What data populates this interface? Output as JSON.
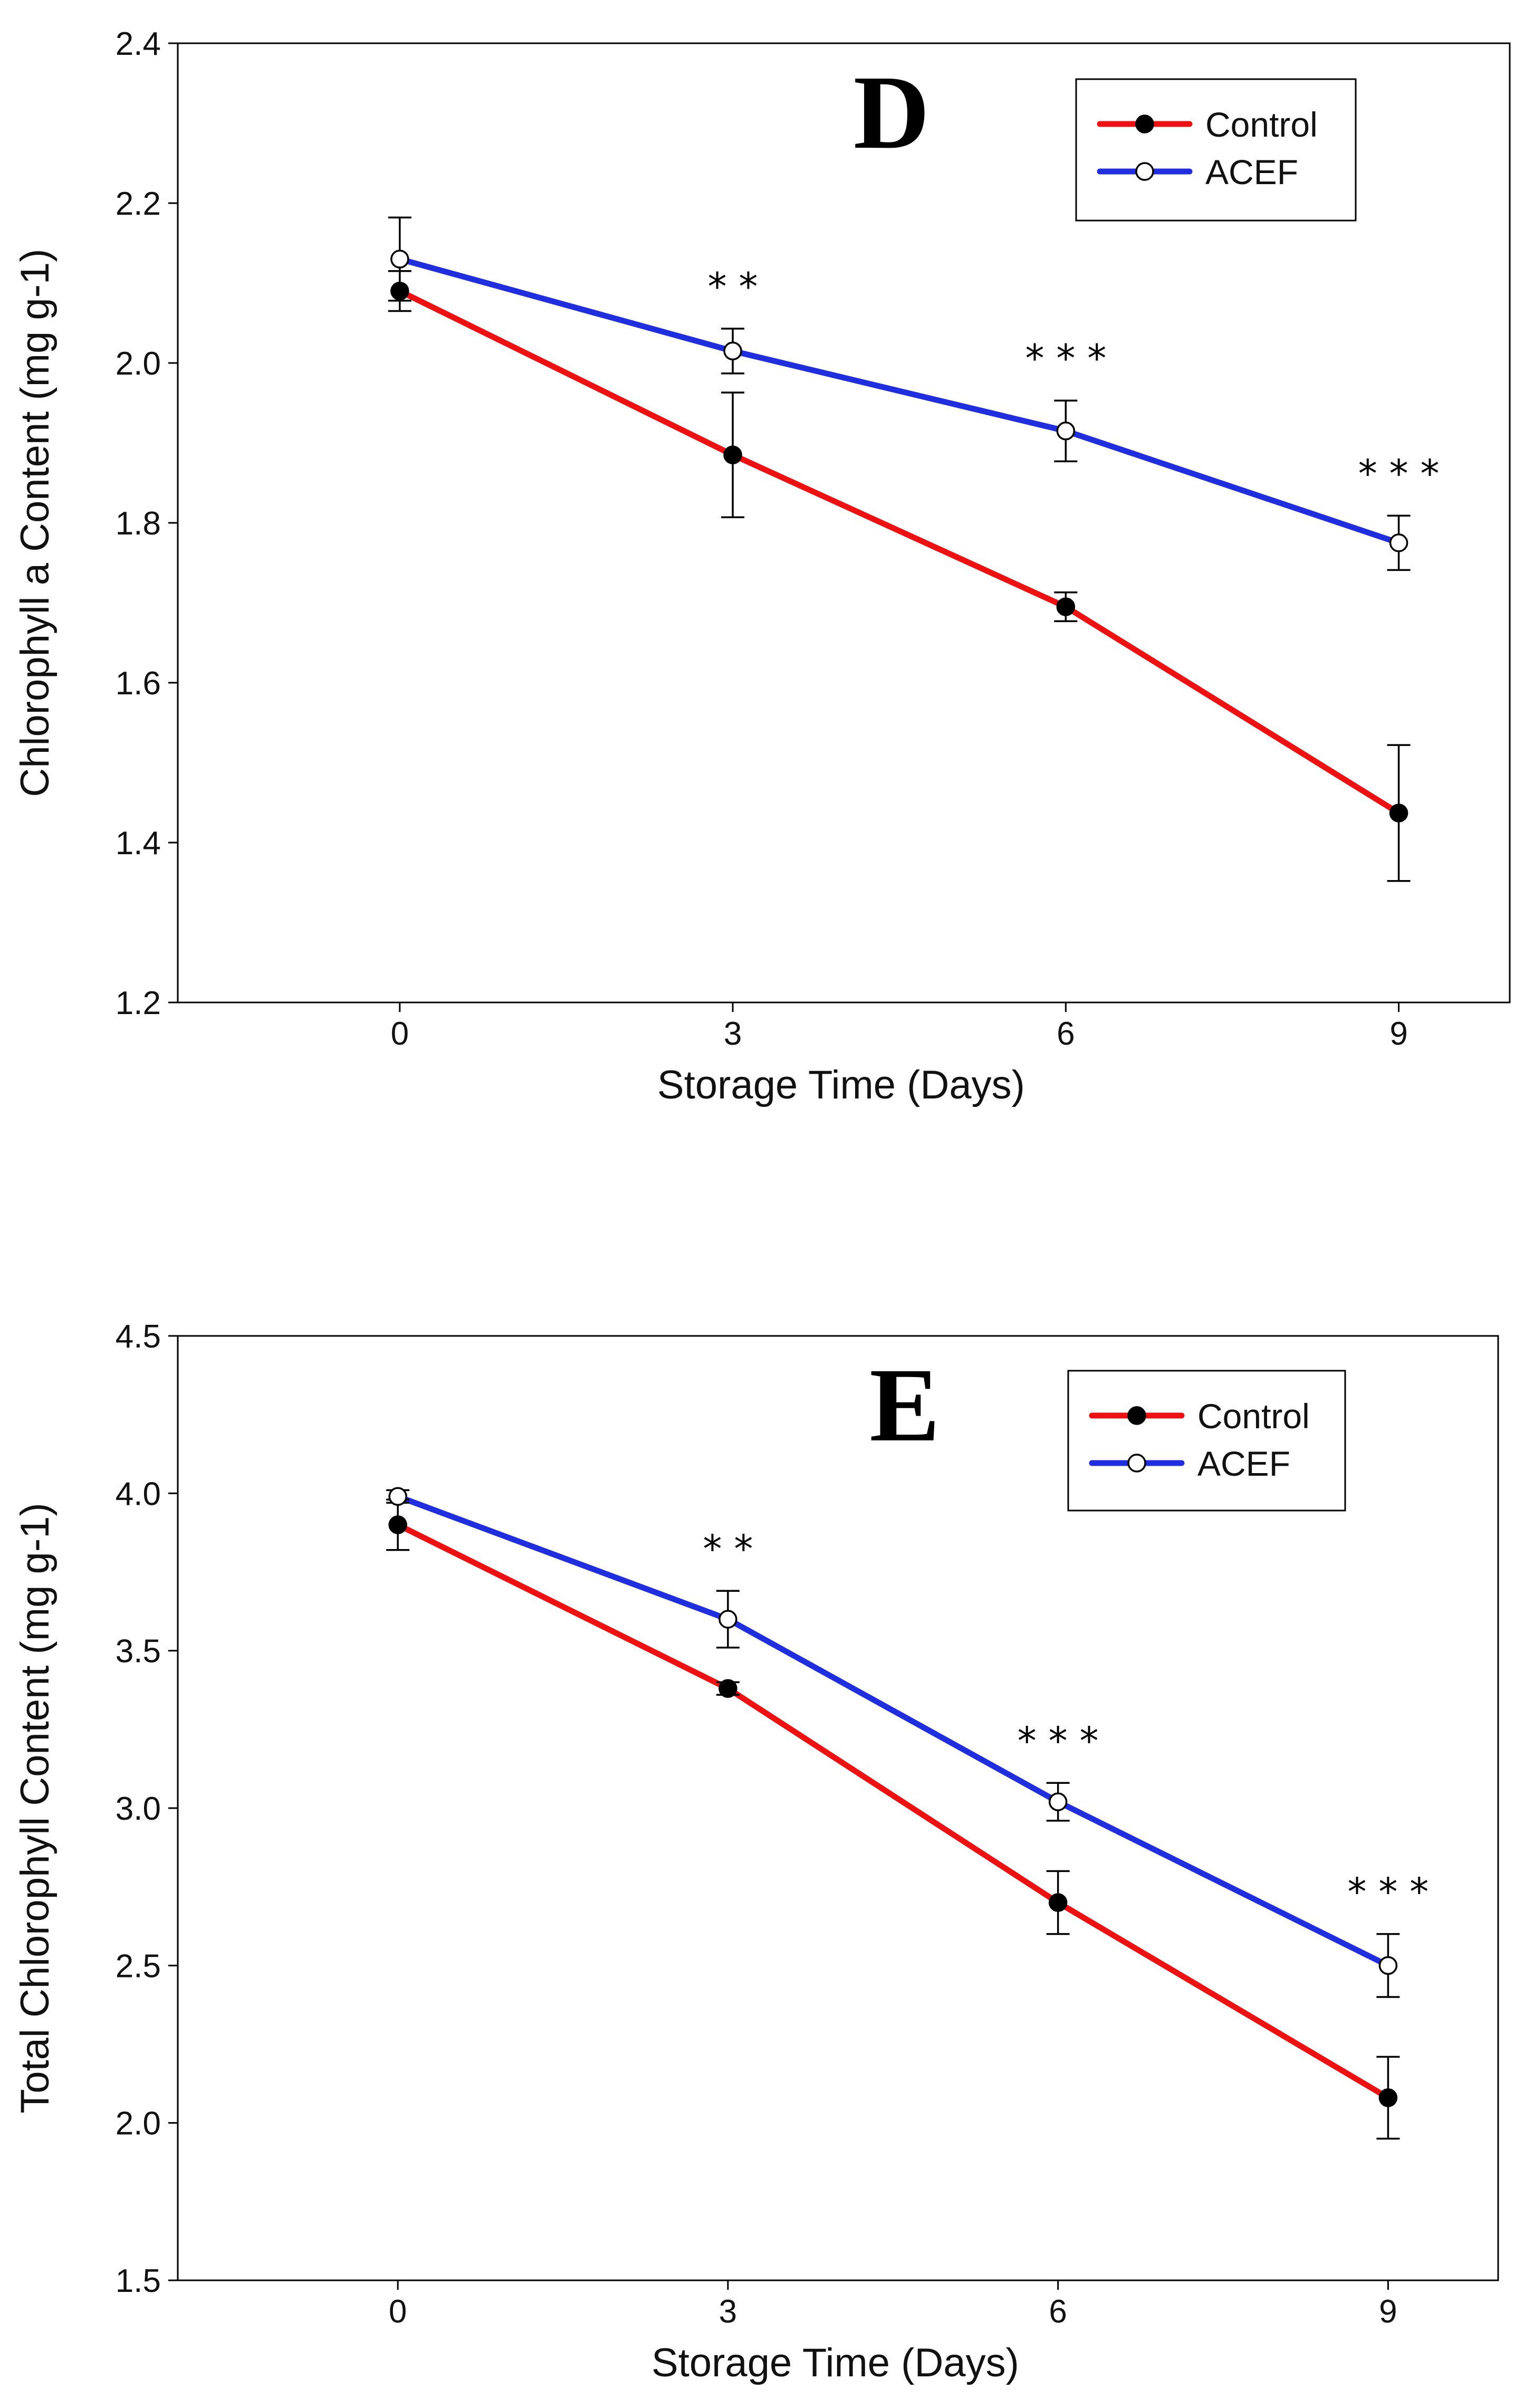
{
  "chart_data": [
    {
      "type": "line",
      "panel_label": "D",
      "title": "",
      "xlabel": "Storage Time (Days)",
      "ylabel": "Chlorophyll a Content (mg g-1)",
      "x": [
        0,
        3,
        6,
        9
      ],
      "x_tick_labels": [
        "0",
        "3",
        "6",
        "9"
      ],
      "xlim": [
        -2,
        10
      ],
      "ylim": [
        1.2,
        2.4
      ],
      "y_ticks": [
        1.2,
        1.4,
        1.6,
        1.8,
        2.0,
        2.2,
        2.4
      ],
      "y_tick_labels": [
        "1.2",
        "1.4",
        "1.6",
        "1.8",
        "2.0",
        "2.2",
        "2.4"
      ],
      "grid": false,
      "legend_position": "top-right",
      "series": [
        {
          "name": "Control",
          "color": "#ee1111",
          "marker": "filled-circle",
          "values": [
            2.09,
            1.885,
            1.695,
            1.437
          ],
          "errors": [
            0.025,
            0.078,
            0.018,
            0.085
          ]
        },
        {
          "name": "ACEF",
          "color": "#1f2fe0",
          "marker": "open-circle",
          "values": [
            2.13,
            2.015,
            1.915,
            1.775
          ],
          "errors": [
            0.052,
            0.028,
            0.038,
            0.034
          ]
        }
      ],
      "annotations": [
        {
          "x": 3,
          "text": "* *"
        },
        {
          "x": 6,
          "text": "* * *"
        },
        {
          "x": 9,
          "text": "* * *"
        }
      ]
    },
    {
      "type": "line",
      "panel_label": "E",
      "title": "",
      "xlabel": "Storage Time (Days)",
      "ylabel": "Total Chlorophyll Content (mg g-1)",
      "x": [
        0,
        3,
        6,
        9
      ],
      "x_tick_labels": [
        "0",
        "3",
        "6",
        "9"
      ],
      "xlim": [
        -2,
        10
      ],
      "ylim": [
        1.5,
        4.5
      ],
      "y_ticks": [
        1.5,
        2.0,
        2.5,
        3.0,
        3.5,
        4.0,
        4.5
      ],
      "y_tick_labels": [
        "1.5",
        "2.0",
        "2.5",
        "3.0",
        "3.5",
        "4.0",
        "4.5"
      ],
      "grid": false,
      "legend_position": "top-right",
      "series": [
        {
          "name": "Control",
          "color": "#ee1111",
          "marker": "filled-circle",
          "values": [
            3.9,
            3.38,
            2.7,
            2.08
          ],
          "errors": [
            0.08,
            0.02,
            0.1,
            0.13
          ]
        },
        {
          "name": "ACEF",
          "color": "#1f2fe0",
          "marker": "open-circle",
          "values": [
            3.99,
            3.6,
            3.02,
            2.5
          ],
          "errors": [
            0.02,
            0.09,
            0.06,
            0.1
          ]
        }
      ],
      "annotations": [
        {
          "x": 3,
          "text": "* *"
        },
        {
          "x": 6,
          "text": "* * *"
        },
        {
          "x": 9,
          "text": "* * *"
        }
      ]
    }
  ]
}
